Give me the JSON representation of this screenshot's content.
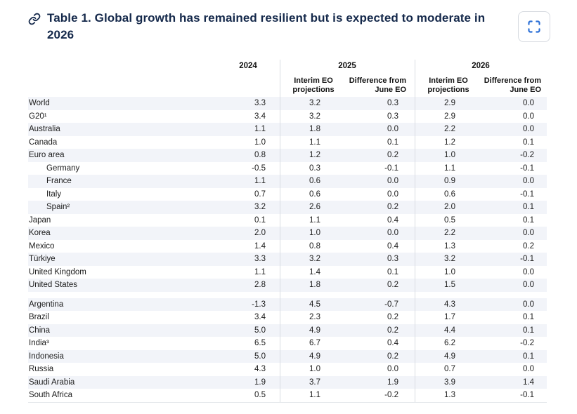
{
  "header": {
    "title": "Table 1. Global growth has remained resilient but is expected to moderate in 2026"
  },
  "colors": {
    "title_navy": "#15294b",
    "stripe": "#f2f4f9",
    "divider": "#d9dce2",
    "expand_icon_blue": "#2b6fd6"
  },
  "table": {
    "col_groups": [
      {
        "label": "2024",
        "subcols": []
      },
      {
        "label": "2025",
        "subcols": [
          "Interim EO projections",
          "Difference from June EO"
        ]
      },
      {
        "label": "2026",
        "subcols": [
          "Interim EO projections",
          "Difference from June EO"
        ]
      }
    ],
    "groups": [
      {
        "rows": [
          {
            "label": "World",
            "indent": false,
            "values": [
              "3.3",
              "3.2",
              "0.3",
              "2.9",
              "0.0"
            ]
          },
          {
            "label": "G20¹",
            "indent": false,
            "values": [
              "3.4",
              "3.2",
              "0.3",
              "2.9",
              "0.0"
            ]
          },
          {
            "label": "Australia",
            "indent": false,
            "values": [
              "1.1",
              "1.8",
              "0.0",
              "2.2",
              "0.0"
            ]
          },
          {
            "label": "Canada",
            "indent": false,
            "values": [
              "1.0",
              "1.1",
              "0.1",
              "1.2",
              "0.1"
            ]
          },
          {
            "label": "Euro area",
            "indent": false,
            "values": [
              "0.8",
              "1.2",
              "0.2",
              "1.0",
              "-0.2"
            ]
          },
          {
            "label": "Germany",
            "indent": true,
            "values": [
              "-0.5",
              "0.3",
              "-0.1",
              "1.1",
              "-0.1"
            ]
          },
          {
            "label": "France",
            "indent": true,
            "values": [
              "1.1",
              "0.6",
              "0.0",
              "0.9",
              "0.0"
            ]
          },
          {
            "label": "Italy",
            "indent": true,
            "values": [
              "0.7",
              "0.6",
              "0.0",
              "0.6",
              "-0.1"
            ]
          },
          {
            "label": "Spain²",
            "indent": true,
            "values": [
              "3.2",
              "2.6",
              "0.2",
              "2.0",
              "0.1"
            ]
          },
          {
            "label": "Japan",
            "indent": false,
            "values": [
              "0.1",
              "1.1",
              "0.4",
              "0.5",
              "0.1"
            ]
          },
          {
            "label": "Korea",
            "indent": false,
            "values": [
              "2.0",
              "1.0",
              "0.0",
              "2.2",
              "0.0"
            ]
          },
          {
            "label": "Mexico",
            "indent": false,
            "values": [
              "1.4",
              "0.8",
              "0.4",
              "1.3",
              "0.2"
            ]
          },
          {
            "label": "Türkiye",
            "indent": false,
            "values": [
              "3.3",
              "3.2",
              "0.3",
              "3.2",
              "-0.1"
            ]
          },
          {
            "label": "United Kingdom",
            "indent": false,
            "values": [
              "1.1",
              "1.4",
              "0.1",
              "1.0",
              "0.0"
            ]
          },
          {
            "label": "United States",
            "indent": false,
            "values": [
              "2.8",
              "1.8",
              "0.2",
              "1.5",
              "0.0"
            ]
          }
        ]
      },
      {
        "rows": [
          {
            "label": "Argentina",
            "indent": false,
            "values": [
              "-1.3",
              "4.5",
              "-0.7",
              "4.3",
              "0.0"
            ]
          },
          {
            "label": "Brazil",
            "indent": false,
            "values": [
              "3.4",
              "2.3",
              "0.2",
              "1.7",
              "0.1"
            ]
          },
          {
            "label": "China",
            "indent": false,
            "values": [
              "5.0",
              "4.9",
              "0.2",
              "4.4",
              "0.1"
            ]
          },
          {
            "label": "India³",
            "indent": false,
            "values": [
              "6.5",
              "6.7",
              "0.4",
              "6.2",
              "-0.2"
            ]
          },
          {
            "label": "Indonesia",
            "indent": false,
            "values": [
              "5.0",
              "4.9",
              "0.2",
              "4.9",
              "0.1"
            ]
          },
          {
            "label": "Russia",
            "indent": false,
            "values": [
              "4.3",
              "1.0",
              "0.0",
              "0.7",
              "0.0"
            ]
          },
          {
            "label": "Saudi Arabia",
            "indent": false,
            "values": [
              "1.9",
              "3.7",
              "1.9",
              "3.9",
              "1.4"
            ]
          },
          {
            "label": "South Africa",
            "indent": false,
            "values": [
              "0.5",
              "1.1",
              "-0.2",
              "1.3",
              "-0.1"
            ]
          }
        ]
      }
    ]
  }
}
